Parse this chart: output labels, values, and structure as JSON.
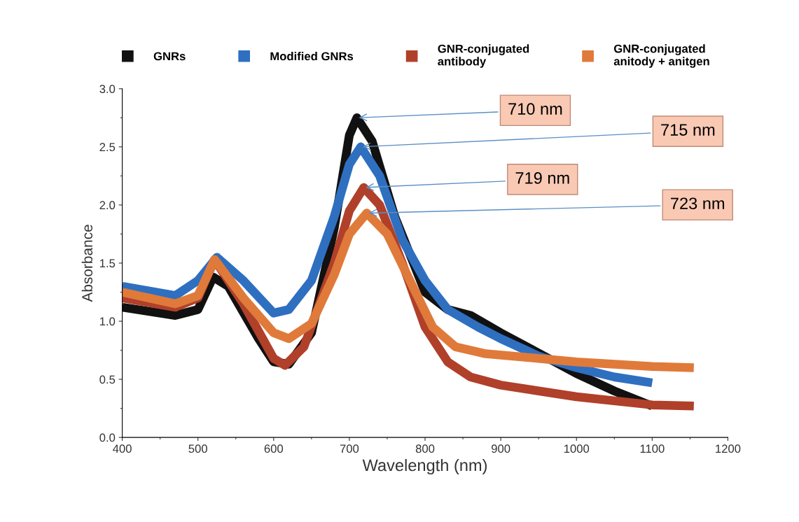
{
  "chart_data": {
    "type": "line",
    "xlabel": "Wavelength (nm)",
    "ylabel": "Absorbance",
    "xlim": [
      400,
      1200
    ],
    "xticks": [
      400,
      500,
      600,
      700,
      800,
      900,
      1000,
      1100,
      1200
    ],
    "ylim": [
      0,
      3.0
    ],
    "yticks": [
      {
        "value": 0,
        "label": "0.0"
      },
      {
        "value": 0.5,
        "label": "0.5"
      },
      {
        "value": 1.0,
        "label": "1.0"
      },
      {
        "value": 1.5,
        "label": "1.5"
      },
      {
        "value": 2.0,
        "label": "2.0"
      },
      {
        "value": 2.5,
        "label": "2.5"
      },
      {
        "value": 3.0,
        "label": "3.0"
      }
    ],
    "grid": false,
    "legend": "top",
    "marker": "none",
    "line_style": "solid",
    "series": [
      {
        "name": "GNRs",
        "color": "#111111",
        "x": [
          400,
          470,
          500,
          520,
          540,
          580,
          600,
          620,
          650,
          680,
          700,
          710,
          730,
          760,
          800,
          830,
          860,
          900,
          1000,
          1050,
          1100
        ],
        "values": [
          1.12,
          1.05,
          1.1,
          1.38,
          1.3,
          0.85,
          0.65,
          0.63,
          0.9,
          1.8,
          2.6,
          2.75,
          2.55,
          1.9,
          1.25,
          1.1,
          1.05,
          0.9,
          0.55,
          0.4,
          0.27
        ]
      },
      {
        "name": "Modified GNRs",
        "color": "#2f6fc0",
        "x": [
          400,
          470,
          500,
          525,
          560,
          600,
          620,
          650,
          680,
          700,
          715,
          740,
          770,
          800,
          830,
          870,
          900,
          950,
          1000,
          1050,
          1100
        ],
        "values": [
          1.3,
          1.22,
          1.35,
          1.55,
          1.35,
          1.07,
          1.1,
          1.35,
          1.9,
          2.35,
          2.5,
          2.25,
          1.7,
          1.35,
          1.1,
          0.95,
          0.85,
          0.7,
          0.6,
          0.52,
          0.47
        ]
      },
      {
        "name": "GNR-conjugated\nantibody",
        "color": "#b0402a",
        "x": [
          400,
          470,
          500,
          522,
          560,
          600,
          615,
          640,
          680,
          700,
          719,
          740,
          770,
          800,
          830,
          860,
          900,
          1000,
          1100,
          1155
        ],
        "values": [
          1.2,
          1.12,
          1.2,
          1.53,
          1.15,
          0.68,
          0.62,
          0.78,
          1.5,
          1.95,
          2.15,
          2.0,
          1.5,
          0.95,
          0.65,
          0.52,
          0.45,
          0.35,
          0.28,
          0.27
        ]
      },
      {
        "name": "GNR-conjugated\nanitody + anitgen",
        "color": "#e07a3a",
        "x": [
          400,
          470,
          500,
          522,
          560,
          600,
          620,
          650,
          680,
          700,
          723,
          750,
          780,
          810,
          840,
          880,
          950,
          1000,
          1100,
          1155
        ],
        "values": [
          1.25,
          1.15,
          1.22,
          1.53,
          1.2,
          0.9,
          0.85,
          0.98,
          1.4,
          1.75,
          1.93,
          1.75,
          1.35,
          0.95,
          0.78,
          0.72,
          0.68,
          0.65,
          0.61,
          0.6
        ]
      }
    ],
    "annotations": [
      {
        "text": "710 nm",
        "x": 710,
        "y": 2.75
      },
      {
        "text": "715 nm",
        "x": 715,
        "y": 2.5
      },
      {
        "text": "719 nm",
        "x": 719,
        "y": 2.15
      },
      {
        "text": "723 nm",
        "x": 723,
        "y": 1.93
      }
    ]
  }
}
